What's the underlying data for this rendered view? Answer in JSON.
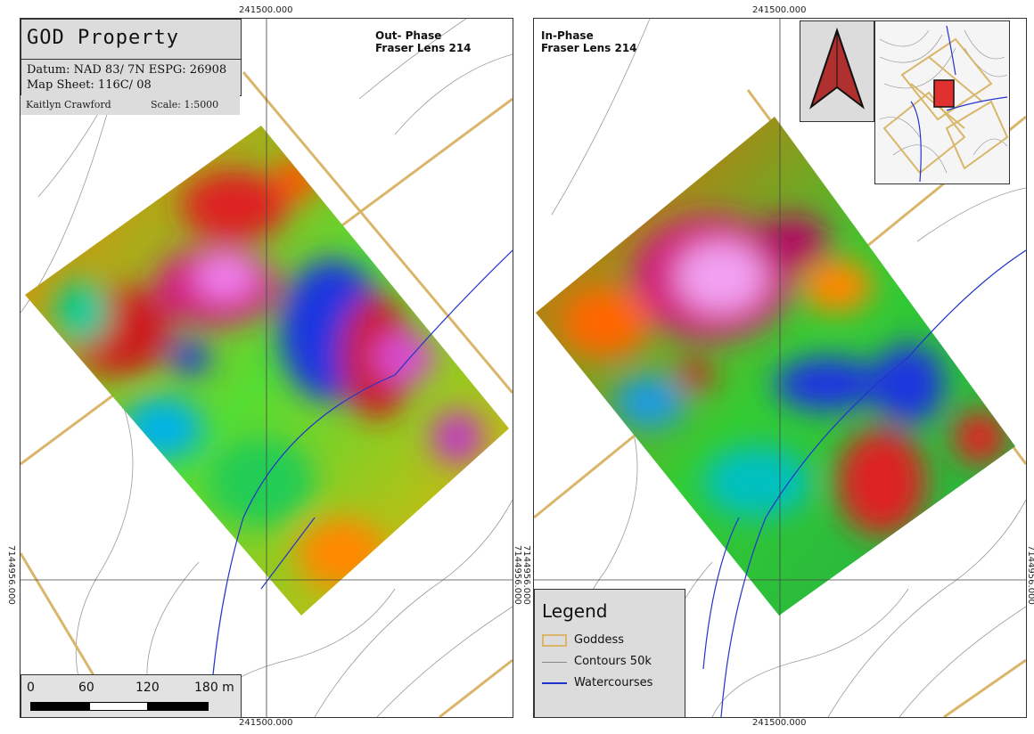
{
  "coords": {
    "easting": "241500.000",
    "northing": "7144956.000"
  },
  "panels": [
    {
      "id": "left",
      "label": "Out- Phase\nFraser Lens 214",
      "title": "GOD Property",
      "datum": "Datum: NAD 83/ 7N ESPG: 26908",
      "map_sheet": "Map Sheet: 116C/ 08",
      "author": "Kaitlyn Crawford",
      "scale": "Scale: 1:5000",
      "scalebar_ticks": [
        "0",
        "60",
        "120",
        "180 m"
      ]
    },
    {
      "id": "right",
      "label": "In-Phase\nFraser Lens 214",
      "legend": {
        "title": "Legend",
        "items": [
          {
            "label": "Goddess",
            "color": "#d9b66a",
            "type": "polygon"
          },
          {
            "label": "Contours 50k",
            "color": "#8a8a8a",
            "type": "line"
          },
          {
            "label": "Watercourses",
            "color": "#2233cc",
            "type": "line"
          }
        ]
      }
    }
  ],
  "icons": {
    "north_arrow": "north-arrow-icon",
    "inset_map": "overview-map"
  },
  "colors": {
    "claim_boundary": "#d9b66a",
    "contour": "#8a8a8a",
    "watercourse": "#2233cc",
    "high": "#e23cc8",
    "low": "#1530d0"
  }
}
